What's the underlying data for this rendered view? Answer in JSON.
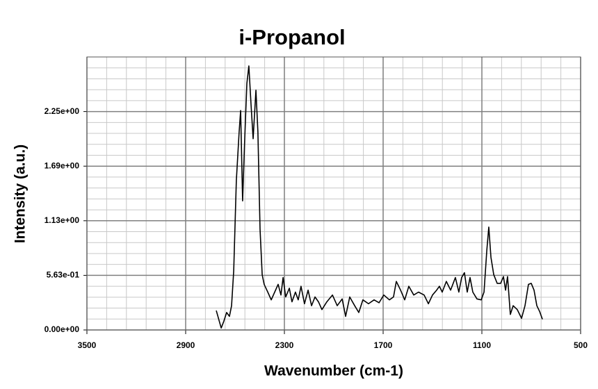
{
  "chart_data": {
    "type": "line",
    "title": "i-Propanol",
    "x_label": "Wavenumber (cm-1)",
    "y_label": "Intensity (a.u.)",
    "xlim": [
      3500,
      500
    ],
    "xticks": [
      3500,
      2900,
      2300,
      1700,
      1100,
      500
    ],
    "ylim": [
      0,
      2.8125
    ],
    "yticks": [
      {
        "value": 0,
        "label": "0.00e+00"
      },
      {
        "value": 0.5625,
        "label": "5.63e-01"
      },
      {
        "value": 1.125,
        "label": "1.13e+00"
      },
      {
        "value": 1.6875,
        "label": "1.69e+00"
      },
      {
        "value": 2.25,
        "label": "2.25e+00"
      }
    ],
    "grid": true,
    "series": [
      {
        "color": "#000000",
        "x": [
          2714,
          2684,
          2668,
          2651,
          2634,
          2621,
          2608,
          2592,
          2575,
          2566,
          2554,
          2541,
          2528,
          2516,
          2503,
          2490,
          2473,
          2461,
          2448,
          2435,
          2423,
          2401,
          2380,
          2359,
          2338,
          2321,
          2308,
          2292,
          2270,
          2254,
          2233,
          2216,
          2199,
          2178,
          2156,
          2135,
          2114,
          2093,
          2072,
          2042,
          2008,
          1979,
          1949,
          1928,
          1903,
          1873,
          1848,
          1823,
          1789,
          1755,
          1725,
          1696,
          1662,
          1637,
          1620,
          1594,
          1569,
          1544,
          1514,
          1485,
          1451,
          1425,
          1400,
          1375,
          1358,
          1341,
          1316,
          1290,
          1261,
          1240,
          1223,
          1206,
          1189,
          1172,
          1155,
          1130,
          1104,
          1087,
          1070,
          1058,
          1045,
          1028,
          1007,
          986,
          969,
          956,
          944,
          927,
          910,
          885,
          859,
          838,
          817,
          800,
          783,
          766,
          749,
          732
        ],
        "values": [
          0.2,
          0.02,
          0.09,
          0.18,
          0.14,
          0.25,
          0.61,
          1.54,
          2.04,
          2.26,
          1.33,
          1.97,
          2.54,
          2.72,
          2.33,
          1.97,
          2.47,
          2.04,
          1.04,
          0.57,
          0.47,
          0.39,
          0.31,
          0.39,
          0.47,
          0.36,
          0.54,
          0.34,
          0.43,
          0.29,
          0.39,
          0.31,
          0.45,
          0.27,
          0.41,
          0.25,
          0.34,
          0.29,
          0.21,
          0.29,
          0.36,
          0.25,
          0.32,
          0.14,
          0.34,
          0.25,
          0.18,
          0.31,
          0.27,
          0.31,
          0.28,
          0.36,
          0.31,
          0.34,
          0.5,
          0.41,
          0.31,
          0.45,
          0.36,
          0.39,
          0.36,
          0.27,
          0.36,
          0.41,
          0.45,
          0.39,
          0.5,
          0.41,
          0.54,
          0.39,
          0.54,
          0.59,
          0.39,
          0.54,
          0.39,
          0.32,
          0.31,
          0.39,
          0.82,
          1.06,
          0.75,
          0.57,
          0.48,
          0.48,
          0.55,
          0.41,
          0.55,
          0.16,
          0.25,
          0.21,
          0.12,
          0.25,
          0.47,
          0.48,
          0.41,
          0.25,
          0.19,
          0.11
        ]
      }
    ]
  }
}
